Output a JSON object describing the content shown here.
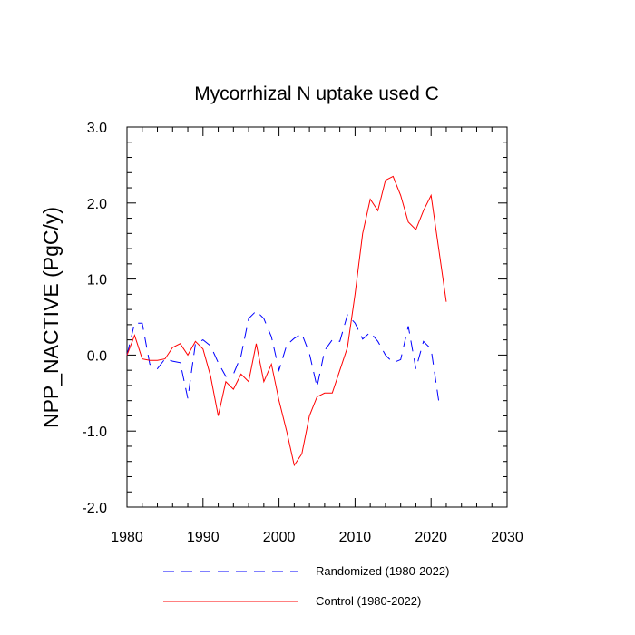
{
  "chart_data": {
    "type": "line",
    "title": "Mycorrhizal N uptake used C",
    "xlabel": "",
    "ylabel": "NPP_NACTIVE  (PgC/y)",
    "xlim": [
      1980,
      2030
    ],
    "ylim": [
      -2.0,
      3.0
    ],
    "x_ticks": [
      1980,
      1990,
      2000,
      2010,
      2020,
      2030
    ],
    "y_ticks": [
      -2.0,
      -1.0,
      0.0,
      1.0,
      2.0,
      3.0
    ],
    "x_tick_labels": [
      "1980",
      "1990",
      "2000",
      "2010",
      "2020",
      "2030"
    ],
    "y_tick_labels": [
      "-2.0",
      "-1.0",
      "0.0",
      "1.0",
      "2.0",
      "3.0"
    ],
    "grid": false,
    "legend_position": "bottom",
    "x": [
      1980,
      1981,
      1982,
      1983,
      1984,
      1985,
      1986,
      1987,
      1988,
      1989,
      1990,
      1991,
      1992,
      1993,
      1994,
      1995,
      1996,
      1997,
      1998,
      1999,
      2000,
      2001,
      2002,
      2003,
      2004,
      2005,
      2006,
      2007,
      2008,
      2009,
      2010,
      2011,
      2012,
      2013,
      2014,
      2015,
      2016,
      2017,
      2018,
      2019,
      2020,
      2021,
      2022
    ],
    "series": [
      {
        "name": "Randomized (1980-2022)",
        "color": "#0000ff",
        "dash": "dashed",
        "values": [
          0.0,
          0.42,
          0.42,
          -0.12,
          -0.18,
          -0.05,
          -0.08,
          -0.1,
          -0.57,
          0.15,
          0.2,
          0.12,
          -0.1,
          -0.28,
          -0.25,
          -0.01,
          0.48,
          0.58,
          0.48,
          0.24,
          -0.2,
          0.13,
          0.22,
          0.28,
          0.02,
          -0.42,
          0.06,
          0.2,
          0.18,
          0.53,
          0.42,
          0.21,
          0.3,
          0.18,
          0.0,
          -0.1,
          -0.06,
          0.38,
          -0.18,
          0.18,
          0.08,
          -0.6,
          null
        ]
      },
      {
        "name": "Control (1980-2022)",
        "color": "#ff0000",
        "dash": "solid",
        "values": [
          0.0,
          0.26,
          -0.05,
          -0.07,
          -0.07,
          -0.05,
          0.1,
          0.15,
          0.0,
          0.18,
          0.08,
          -0.28,
          -0.8,
          -0.35,
          -0.45,
          -0.25,
          -0.35,
          0.15,
          -0.35,
          -0.12,
          -0.6,
          -1.0,
          -1.45,
          -1.3,
          -0.8,
          -0.55,
          -0.5,
          -0.5,
          -0.2,
          0.1,
          0.8,
          1.6,
          2.05,
          1.9,
          2.3,
          2.35,
          2.1,
          1.75,
          1.65,
          1.9,
          2.1,
          1.4,
          0.7
        ]
      }
    ]
  }
}
